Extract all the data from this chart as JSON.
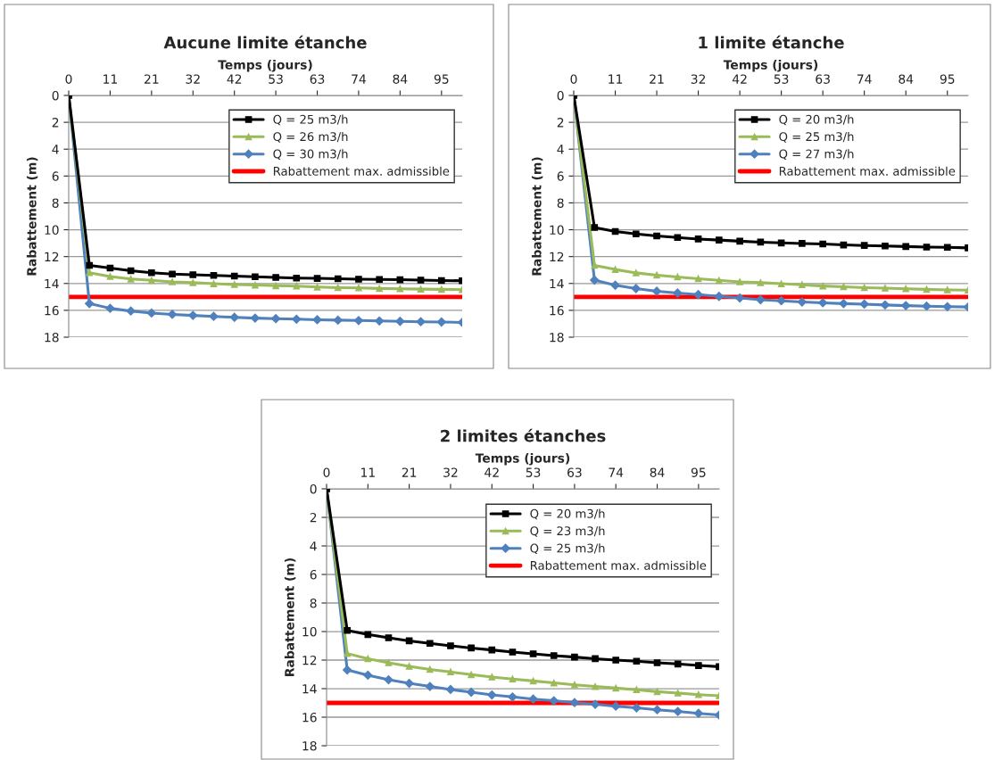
{
  "chart_data": [
    {
      "type": "line",
      "title": "Aucune limite étanche",
      "xlabel": "Temps (jours)",
      "ylabel": "Rabattement (m)",
      "x": [
        0,
        5.26,
        10.53,
        15.79,
        21.05,
        26.32,
        31.58,
        36.84,
        42.11,
        47.37,
        52.63,
        57.89,
        63.16,
        68.42,
        73.68,
        78.95,
        84.21,
        89.47,
        94.74,
        100
      ],
      "xlim": [
        0,
        100
      ],
      "xticks": [
        0,
        {
          "value": 10.53,
          "label": "11"
        },
        {
          "value": 21.05,
          "label": "21"
        },
        {
          "value": 31.58,
          "label": "32"
        },
        {
          "value": 42.11,
          "label": "42"
        },
        {
          "value": 52.63,
          "label": "53"
        },
        {
          "value": 63.16,
          "label": "63"
        },
        {
          "value": 73.68,
          "label": "74"
        },
        {
          "value": 84.21,
          "label": "84"
        },
        {
          "value": 94.74,
          "label": "95"
        }
      ],
      "ylim": [
        18,
        0
      ],
      "yticks": [
        0,
        2,
        4,
        6,
        8,
        10,
        12,
        14,
        16,
        18
      ],
      "grid": "y",
      "legend": "top right",
      "line_style": "solid",
      "series": [
        {
          "name": "Q = 25 m3/h",
          "color": "#000000",
          "marker": "square",
          "values": [
            0,
            12.65,
            12.85,
            13.05,
            13.2,
            13.3,
            13.35,
            13.4,
            13.45,
            13.5,
            13.55,
            13.6,
            13.62,
            13.65,
            13.68,
            13.7,
            13.72,
            13.75,
            13.78,
            13.8
          ]
        },
        {
          "name": "Q = 26 m3/h",
          "color": "#9bbb59",
          "marker": "triangle",
          "values": [
            0,
            13.2,
            13.48,
            13.67,
            13.77,
            13.88,
            13.94,
            14.02,
            14.08,
            14.12,
            14.17,
            14.2,
            14.27,
            14.31,
            14.33,
            14.37,
            14.4,
            14.42,
            14.44,
            14.46
          ]
        },
        {
          "name": "Q = 30 m3/h",
          "color": "#4f81bd",
          "marker": "diamond",
          "values": [
            0,
            15.5,
            15.85,
            16.05,
            16.2,
            16.3,
            16.38,
            16.45,
            16.52,
            16.58,
            16.62,
            16.66,
            16.7,
            16.73,
            16.76,
            16.79,
            16.82,
            16.85,
            16.87,
            16.9
          ]
        }
      ],
      "ref_lines": [
        {
          "axis": "y",
          "value": 15,
          "label": "Rabattement max. admissible",
          "color": "#ff0000"
        }
      ]
    },
    {
      "type": "line",
      "title": "1 limite étanche",
      "xlabel": "Temps (jours)",
      "ylabel": "Rabattement (m)",
      "x": [
        0,
        5.26,
        10.53,
        15.79,
        21.05,
        26.32,
        31.58,
        36.84,
        42.11,
        47.37,
        52.63,
        57.89,
        63.16,
        68.42,
        73.68,
        78.95,
        84.21,
        89.47,
        94.74,
        100
      ],
      "xlim": [
        0,
        100
      ],
      "xticks": [
        0,
        {
          "value": 10.53,
          "label": "11"
        },
        {
          "value": 21.05,
          "label": "21"
        },
        {
          "value": 31.58,
          "label": "32"
        },
        {
          "value": 42.11,
          "label": "42"
        },
        {
          "value": 52.63,
          "label": "53"
        },
        {
          "value": 63.16,
          "label": "63"
        },
        {
          "value": 73.68,
          "label": "74"
        },
        {
          "value": 84.21,
          "label": "84"
        },
        {
          "value": 94.74,
          "label": "95"
        }
      ],
      "ylim": [
        18,
        0
      ],
      "yticks": [
        0,
        2,
        4,
        6,
        8,
        10,
        12,
        14,
        16,
        18
      ],
      "grid": "y",
      "legend": "top right",
      "line_style": "solid",
      "series": [
        {
          "name": "Q = 20 m3/h",
          "color": "#000000",
          "marker": "square",
          "values": [
            0,
            9.83,
            10.13,
            10.31,
            10.46,
            10.58,
            10.69,
            10.77,
            10.85,
            10.92,
            10.98,
            11.02,
            11.06,
            11.13,
            11.17,
            11.21,
            11.25,
            11.29,
            11.31,
            11.35
          ]
        },
        {
          "name": "Q = 25 m3/h",
          "color": "#9bbb59",
          "marker": "triangle",
          "values": [
            0,
            12.65,
            12.96,
            13.21,
            13.38,
            13.52,
            13.65,
            13.77,
            13.88,
            13.94,
            14.02,
            14.1,
            14.19,
            14.25,
            14.31,
            14.35,
            14.4,
            14.44,
            14.48,
            14.5
          ]
        },
        {
          "name": "Q = 27 m3/h",
          "color": "#4f81bd",
          "marker": "diamond",
          "values": [
            0,
            13.75,
            14.13,
            14.38,
            14.58,
            14.71,
            14.83,
            14.96,
            15.08,
            15.21,
            15.29,
            15.38,
            15.44,
            15.5,
            15.54,
            15.6,
            15.65,
            15.69,
            15.73,
            15.75
          ]
        }
      ],
      "ref_lines": [
        {
          "axis": "y",
          "value": 15,
          "label": "Rabattement max. admissible",
          "color": "#ff0000"
        }
      ]
    },
    {
      "type": "line",
      "title": "2 limites étanches",
      "xlabel": "Temps (jours)",
      "ylabel": "Rabattement (m)",
      "x": [
        0,
        5.26,
        10.53,
        15.79,
        21.05,
        26.32,
        31.58,
        36.84,
        42.11,
        47.37,
        52.63,
        57.89,
        63.16,
        68.42,
        73.68,
        78.95,
        84.21,
        89.47,
        94.74,
        100
      ],
      "xlim": [
        0,
        100
      ],
      "xticks": [
        0,
        {
          "value": 10.53,
          "label": "11"
        },
        {
          "value": 21.05,
          "label": "21"
        },
        {
          "value": 31.58,
          "label": "32"
        },
        {
          "value": 42.11,
          "label": "42"
        },
        {
          "value": 52.63,
          "label": "53"
        },
        {
          "value": 63.16,
          "label": "63"
        },
        {
          "value": 73.68,
          "label": "74"
        },
        {
          "value": 84.21,
          "label": "84"
        },
        {
          "value": 94.74,
          "label": "95"
        }
      ],
      "ylim": [
        18,
        0
      ],
      "yticks": [
        0,
        2,
        4,
        6,
        8,
        10,
        12,
        14,
        16,
        18
      ],
      "grid": "y",
      "legend": "top right",
      "line_style": "solid",
      "series": [
        {
          "name": "Q = 20 m3/h",
          "color": "#000000",
          "marker": "square",
          "values": [
            0,
            9.92,
            10.21,
            10.44,
            10.65,
            10.83,
            11.0,
            11.15,
            11.29,
            11.44,
            11.56,
            11.69,
            11.79,
            11.9,
            12.0,
            12.08,
            12.19,
            12.27,
            12.38,
            12.46
          ]
        },
        {
          "name": "Q = 23 m3/h",
          "color": "#9bbb59",
          "marker": "triangle",
          "values": [
            0,
            11.54,
            11.9,
            12.19,
            12.44,
            12.65,
            12.83,
            13.02,
            13.19,
            13.33,
            13.46,
            13.6,
            13.73,
            13.85,
            13.96,
            14.08,
            14.21,
            14.31,
            14.42,
            14.5
          ]
        },
        {
          "name": "Q = 25 m3/h",
          "color": "#4f81bd",
          "marker": "diamond",
          "values": [
            0,
            12.69,
            13.06,
            13.38,
            13.63,
            13.85,
            14.06,
            14.25,
            14.44,
            14.58,
            14.73,
            14.85,
            14.98,
            15.1,
            15.23,
            15.35,
            15.48,
            15.6,
            15.73,
            15.85
          ]
        }
      ],
      "ref_lines": [
        {
          "axis": "y",
          "value": 15,
          "label": "Rabattement max. admissible",
          "color": "#ff0000"
        }
      ]
    }
  ]
}
